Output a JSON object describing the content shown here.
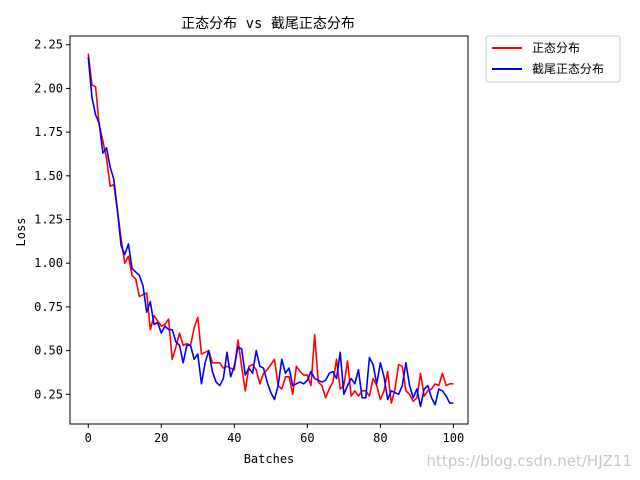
{
  "chart_data": {
    "type": "line",
    "title": "正态分布 vs 截尾正态分布",
    "xlabel": "Batches",
    "ylabel": "Loss",
    "xlim": [
      -5,
      104
    ],
    "ylim": [
      0.08,
      2.3
    ],
    "xticks": [
      0,
      20,
      40,
      60,
      80,
      100
    ],
    "yticks": [
      0.25,
      0.5,
      0.75,
      1.0,
      1.25,
      1.5,
      1.75,
      2.0,
      2.25
    ],
    "ytick_labels": [
      "0.25",
      "0.50",
      "0.75",
      "1.00",
      "1.25",
      "1.50",
      "1.75",
      "2.00",
      "2.25"
    ],
    "grid": false,
    "legend_position": "outside-top-right",
    "series": [
      {
        "name": "正态分布",
        "color": "#ff0000",
        "values": [
          2.2,
          2.02,
          2.01,
          1.79,
          1.7,
          1.6,
          1.44,
          1.45,
          1.3,
          1.14,
          1.0,
          1.04,
          0.93,
          0.91,
          0.81,
          0.82,
          0.83,
          0.62,
          0.7,
          0.67,
          0.64,
          0.65,
          0.68,
          0.45,
          0.52,
          0.6,
          0.53,
          0.54,
          0.53,
          0.63,
          0.69,
          0.48,
          0.49,
          0.5,
          0.43,
          0.43,
          0.43,
          0.4,
          0.41,
          0.4,
          0.39,
          0.56,
          0.41,
          0.27,
          0.41,
          0.42,
          0.39,
          0.31,
          0.37,
          0.39,
          0.42,
          0.45,
          0.3,
          0.28,
          0.35,
          0.35,
          0.25,
          0.41,
          0.38,
          0.36,
          0.36,
          0.3,
          0.59,
          0.32,
          0.3,
          0.23,
          0.28,
          0.32,
          0.45,
          0.28,
          0.3,
          0.44,
          0.24,
          0.27,
          0.24,
          0.27,
          0.27,
          0.24,
          0.34,
          0.3,
          0.22,
          0.27,
          0.38,
          0.2,
          0.28,
          0.42,
          0.41,
          0.27,
          0.25,
          0.21,
          0.23,
          0.37,
          0.24,
          0.27,
          0.28,
          0.31,
          0.3,
          0.37,
          0.3,
          0.31,
          0.31
        ],
        "sampled_every": 1
      },
      {
        "name": "截尾正态分布",
        "color": "#0000ff",
        "values": [
          2.18,
          1.95,
          1.85,
          1.8,
          1.63,
          1.66,
          1.55,
          1.48,
          1.3,
          1.1,
          1.05,
          1.11,
          0.97,
          0.95,
          0.93,
          0.87,
          0.72,
          0.78,
          0.65,
          0.66,
          0.6,
          0.64,
          0.62,
          0.62,
          0.55,
          0.53,
          0.43,
          0.53,
          0.53,
          0.45,
          0.48,
          0.31,
          0.43,
          0.5,
          0.38,
          0.32,
          0.3,
          0.34,
          0.49,
          0.35,
          0.41,
          0.52,
          0.51,
          0.36,
          0.4,
          0.37,
          0.5,
          0.41,
          0.4,
          0.32,
          0.26,
          0.22,
          0.3,
          0.45,
          0.37,
          0.4,
          0.3,
          0.31,
          0.32,
          0.31,
          0.33,
          0.38,
          0.34,
          0.33,
          0.32,
          0.33,
          0.37,
          0.38,
          0.34,
          0.49,
          0.25,
          0.3,
          0.34,
          0.31,
          0.39,
          0.23,
          0.23,
          0.46,
          0.42,
          0.31,
          0.43,
          0.35,
          0.22,
          0.27,
          0.26,
          0.25,
          0.3,
          0.43,
          0.3,
          0.23,
          0.28,
          0.18,
          0.28,
          0.3,
          0.23,
          0.19,
          0.28,
          0.27,
          0.24,
          0.2,
          0.2
        ],
        "sampled_every": 1
      }
    ]
  },
  "watermark": "https://blog.csdn.net/HJZ11"
}
